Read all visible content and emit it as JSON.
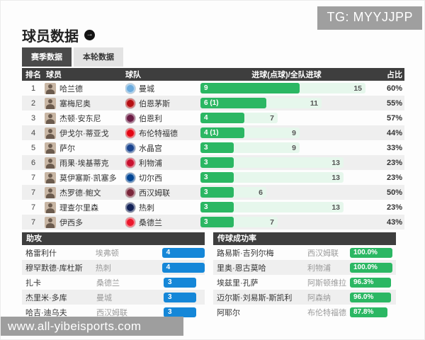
{
  "badge": {
    "text": "TG: MYYJJPP"
  },
  "header": {
    "title": "球员数据"
  },
  "tabs": [
    {
      "label": "赛季数据",
      "active": true
    },
    {
      "label": "本轮数据",
      "active": false
    }
  ],
  "goals_table": {
    "columns": {
      "rank": "排名",
      "player": "球员",
      "team": "球队",
      "goals": "进球(点球)/全队进球",
      "share": "占比"
    },
    "rows": [
      {
        "rank": "1",
        "player": "哈兰德",
        "team": "曼城",
        "goals_label": "9",
        "goals": 9,
        "team_goals": 15,
        "share": "60%",
        "team_color": "#6CABDD"
      },
      {
        "rank": "2",
        "player": "塞梅尼奥",
        "team": "伯恩茅斯",
        "goals_label": "6 (1)",
        "goals": 6,
        "team_goals": 11,
        "share": "55%",
        "team_color": "#B50E12"
      },
      {
        "rank": "3",
        "player": "杰顿·安东尼",
        "team": "伯恩利",
        "goals_label": "4",
        "goals": 4,
        "team_goals": 7,
        "share": "57%",
        "team_color": "#6C1D45"
      },
      {
        "rank": "4",
        "player": "伊戈尔·蒂亚戈",
        "team": "布伦特福德",
        "goals_label": "4 (1)",
        "goals": 4,
        "team_goals": 9,
        "share": "44%",
        "team_color": "#E30613"
      },
      {
        "rank": "5",
        "player": "萨尔",
        "team": "水晶宫",
        "goals_label": "3",
        "goals": 3,
        "team_goals": 9,
        "share": "33%",
        "team_color": "#1B458F"
      },
      {
        "rank": "6",
        "player": "雨果·埃基蒂克",
        "team": "利物浦",
        "goals_label": "3",
        "goals": 3,
        "team_goals": 13,
        "share": "23%",
        "team_color": "#C8102E"
      },
      {
        "rank": "7",
        "player": "莫伊塞斯·凯塞多",
        "team": "切尔西",
        "goals_label": "3",
        "goals": 3,
        "team_goals": 13,
        "share": "23%",
        "team_color": "#034694"
      },
      {
        "rank": "7",
        "player": "杰罗德·鲍文",
        "team": "西汉姆联",
        "goals_label": "3",
        "goals": 3,
        "team_goals": 6,
        "share": "50%",
        "team_color": "#7A263A"
      },
      {
        "rank": "7",
        "player": "理查尔里森",
        "team": "热刺",
        "goals_label": "3",
        "goals": 3,
        "team_goals": 13,
        "share": "23%",
        "team_color": "#132257"
      },
      {
        "rank": "7",
        "player": "伊西多",
        "team": "桑德兰",
        "goals_label": "3",
        "goals": 3,
        "team_goals": 7,
        "share": "43%",
        "team_color": "#EB172B"
      }
    ]
  },
  "assists": {
    "title": "助攻",
    "rows": [
      {
        "player": "格雷利什",
        "team": "埃弗顿",
        "value": 4
      },
      {
        "player": "穆罕默德·库杜斯",
        "team": "热刺",
        "value": 4
      },
      {
        "player": "扎卡",
        "team": "桑德兰",
        "value": 3
      },
      {
        "player": "杰里米·多库",
        "team": "曼城",
        "value": 3
      },
      {
        "player": "哈吉·迪乌夫",
        "team": "西汉姆联",
        "value": 3
      }
    ]
  },
  "pass_rate": {
    "title": "传球成功率",
    "rows": [
      {
        "player": "路易斯·吉列尔梅",
        "team": "西汉姆联",
        "value": "100.0%",
        "pct": 100.0
      },
      {
        "player": "里奥·恩古莫哈",
        "team": "利物浦",
        "value": "100.0%",
        "pct": 100.0
      },
      {
        "player": "埃兹里·孔萨",
        "team": "阿斯顿维拉",
        "value": "96.3%",
        "pct": 96.3
      },
      {
        "player": "迈尔斯·刘易斯-斯凯利",
        "team": "阿森纳",
        "value": "96.0%",
        "pct": 96.0
      },
      {
        "player": "阿耶尔",
        "team": "布伦特福德",
        "value": "87.8%",
        "pct": 87.8
      }
    ]
  },
  "footer": {
    "url": "www.all-yibeisports.com"
  },
  "icons": {
    "title_arrow": "→"
  },
  "colors": {
    "accent_green": "#2bb763",
    "accent_blue": "#1587d8",
    "bar_track": "#e6f7ec",
    "header_dark": "#3e3e3e",
    "badge_gray": "#9f9f9f"
  }
}
